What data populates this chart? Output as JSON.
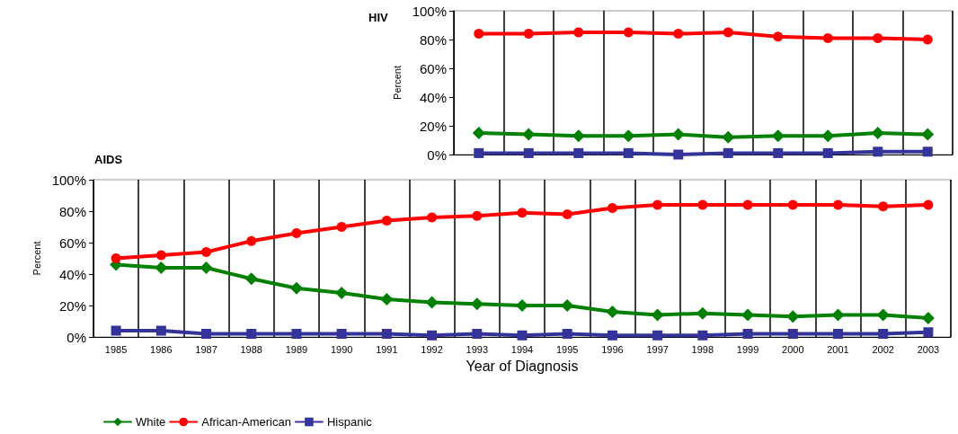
{
  "chart_data": [
    {
      "type": "line",
      "title": "HIV",
      "ylabel": "Percent",
      "categories": [
        null,
        null,
        null,
        null,
        null,
        null,
        null,
        null,
        null,
        null
      ],
      "series": [
        {
          "color": "#008000",
          "marker": "diamond",
          "values": [
            15,
            14,
            13,
            13,
            14,
            12,
            13,
            13,
            15,
            14
          ]
        },
        {
          "color": "#ff0000",
          "marker": "circle",
          "values": [
            84,
            84,
            85,
            85,
            84,
            85,
            82,
            81,
            81,
            80
          ]
        },
        {
          "color": "#333399",
          "marker": "square",
          "values": [
            1,
            1,
            1,
            1,
            0,
            1,
            1,
            1,
            2,
            2
          ]
        }
      ],
      "ylim": [
        0,
        100
      ],
      "yticks": [
        {
          "value": 0,
          "label": "0%"
        },
        {
          "value": 20,
          "label": "20%"
        },
        {
          "value": 40,
          "label": "40%"
        },
        {
          "value": 60,
          "label": "60%"
        },
        {
          "value": 80,
          "label": "80%"
        },
        {
          "value": 100,
          "label": "100%"
        }
      ],
      "grid": "x",
      "legend": false,
      "tick_labels": "y"
    },
    {
      "type": "line",
      "title": "AIDS",
      "xlabel": "Year of Diagnosis",
      "ylabel": "Percent",
      "categories": [
        "1985",
        "1986",
        "1987",
        "1988",
        "1989",
        "1990",
        "1991",
        "1992",
        "1993",
        "1994",
        "1995",
        "1996",
        "1997",
        "1998",
        "1999",
        "2000",
        "2001",
        "2002",
        "2003"
      ],
      "series": [
        {
          "name": "White",
          "color": "#008000",
          "marker": "diamond",
          "values": [
            46,
            44,
            44,
            37,
            31,
            28,
            24,
            22,
            21,
            20,
            20,
            16,
            14,
            15,
            14,
            13,
            14,
            14,
            12
          ]
        },
        {
          "name": "African-American",
          "color": "#ff0000",
          "marker": "circle",
          "values": [
            50,
            52,
            54,
            61,
            66,
            70,
            74,
            76,
            77,
            79,
            78,
            82,
            84,
            84,
            84,
            84,
            84,
            83,
            84
          ]
        },
        {
          "name": "Hispanic",
          "color": "#333399",
          "marker": "square",
          "values": [
            4,
            4,
            2,
            2,
            2,
            2,
            2,
            1,
            2,
            1,
            2,
            1,
            1,
            1,
            2,
            2,
            2,
            2,
            3
          ]
        }
      ],
      "ylim": [
        0,
        100
      ],
      "yticks": [
        {
          "value": 0,
          "label": "0%"
        },
        {
          "value": 20,
          "label": "20%"
        },
        {
          "value": 40,
          "label": "40%"
        },
        {
          "value": 60,
          "label": "60%"
        },
        {
          "value": 80,
          "label": "80%"
        },
        {
          "value": 100,
          "label": "100%"
        }
      ],
      "grid": "x",
      "legend": "bottom left"
    }
  ]
}
